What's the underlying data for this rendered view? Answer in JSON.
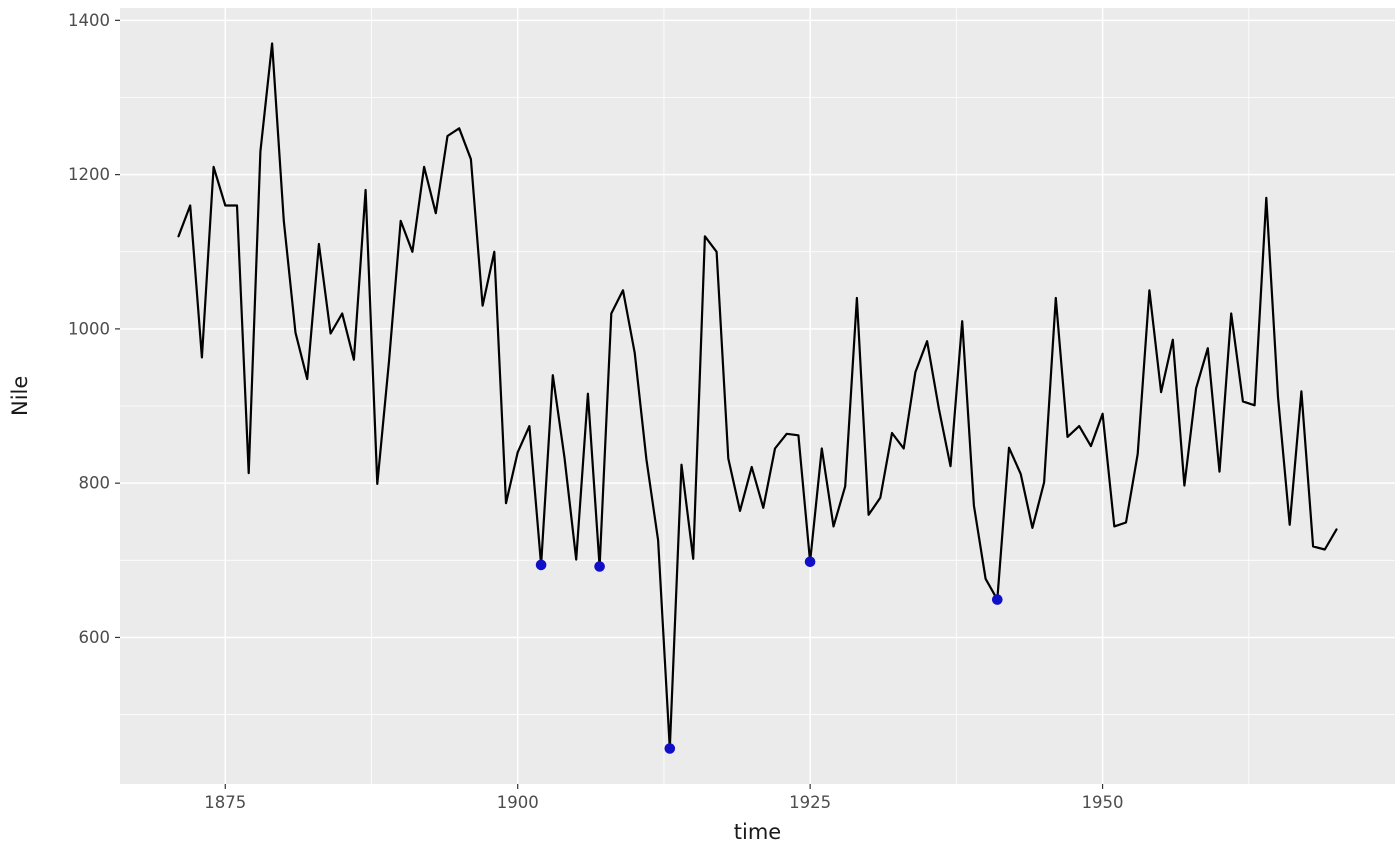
{
  "chart_data": {
    "type": "line",
    "title": "",
    "xlabel": "time",
    "ylabel": "Nile",
    "x": [
      1871,
      1872,
      1873,
      1874,
      1875,
      1876,
      1877,
      1878,
      1879,
      1880,
      1881,
      1882,
      1883,
      1884,
      1885,
      1886,
      1887,
      1888,
      1889,
      1890,
      1891,
      1892,
      1893,
      1894,
      1895,
      1896,
      1897,
      1898,
      1899,
      1900,
      1901,
      1902,
      1903,
      1904,
      1905,
      1906,
      1907,
      1908,
      1909,
      1910,
      1911,
      1912,
      1913,
      1914,
      1915,
      1916,
      1917,
      1918,
      1919,
      1920,
      1921,
      1922,
      1923,
      1924,
      1925,
      1926,
      1927,
      1928,
      1929,
      1930,
      1931,
      1932,
      1933,
      1934,
      1935,
      1936,
      1937,
      1938,
      1939,
      1940,
      1941,
      1942,
      1943,
      1944,
      1945,
      1946,
      1947,
      1948,
      1949,
      1950,
      1951,
      1952,
      1953,
      1954,
      1955,
      1956,
      1957,
      1958,
      1959,
      1960,
      1961,
      1962,
      1963,
      1964,
      1965,
      1966,
      1967,
      1968,
      1969,
      1970
    ],
    "values": [
      1120,
      1160,
      963,
      1210,
      1160,
      1160,
      813,
      1230,
      1370,
      1140,
      995,
      935,
      1110,
      994,
      1020,
      960,
      1180,
      799,
      958,
      1140,
      1100,
      1210,
      1150,
      1250,
      1260,
      1220,
      1030,
      1100,
      774,
      840,
      874,
      694,
      940,
      833,
      701,
      916,
      692,
      1020,
      1050,
      969,
      831,
      726,
      456,
      824,
      702,
      1120,
      1100,
      832,
      764,
      821,
      768,
      845,
      864,
      862,
      698,
      845,
      744,
      796,
      1040,
      759,
      781,
      865,
      845,
      944,
      984,
      897,
      822,
      1010,
      771,
      676,
      649,
      846,
      812,
      742,
      801,
      1040,
      860,
      874,
      848,
      890,
      744,
      749,
      838,
      1050,
      918,
      986,
      797,
      923,
      975,
      815,
      1020,
      906,
      901,
      1170,
      912,
      746,
      919,
      718,
      714,
      740
    ],
    "highlighted_points": [
      {
        "x": 1902,
        "y": 694
      },
      {
        "x": 1907,
        "y": 692
      },
      {
        "x": 1913,
        "y": 456
      },
      {
        "x": 1925,
        "y": 698
      },
      {
        "x": 1941,
        "y": 649
      }
    ],
    "x_ticks": [
      1875,
      1900,
      1925,
      1950
    ],
    "y_ticks": [
      600,
      800,
      1000,
      1200,
      1400
    ],
    "xlim": [
      1866,
      1975
    ],
    "ylim": [
      410,
      1416
    ],
    "grid": "major and minor white gridlines on grey panel",
    "legend": "none",
    "line_color": "#000000",
    "point_color": "#0F0FC8",
    "panel_color": "#EBEBEB",
    "tick_label_color": "#4D4D4D",
    "axis_title_color": "#1A1A1A"
  }
}
